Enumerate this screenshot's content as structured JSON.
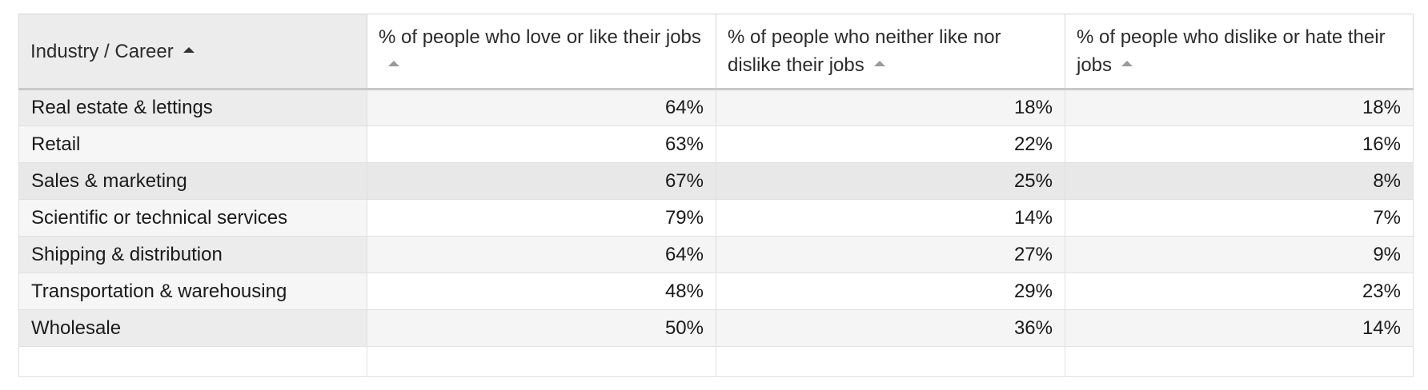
{
  "table": {
    "headers": [
      "Industry / Career",
      "% of people who love or like their jobs",
      "% of people who neither like nor dislike their jobs",
      "% of people who dislike or hate their jobs"
    ],
    "rows": [
      [
        "Real estate & lettings",
        "64%",
        "18%",
        "18%"
      ],
      [
        "Retail",
        "63%",
        "22%",
        "16%"
      ],
      [
        "Sales & marketing",
        "67%",
        "25%",
        "8%"
      ],
      [
        "Scientific or technical services",
        "79%",
        "14%",
        "7%"
      ],
      [
        "Shipping & distribution",
        "64%",
        "27%",
        "9%"
      ],
      [
        "Transportation & warehousing",
        "48%",
        "29%",
        "23%"
      ],
      [
        "Wholesale",
        "50%",
        "36%",
        "14%"
      ]
    ]
  },
  "sort": {
    "icon": "sort-ascending-icon"
  }
}
